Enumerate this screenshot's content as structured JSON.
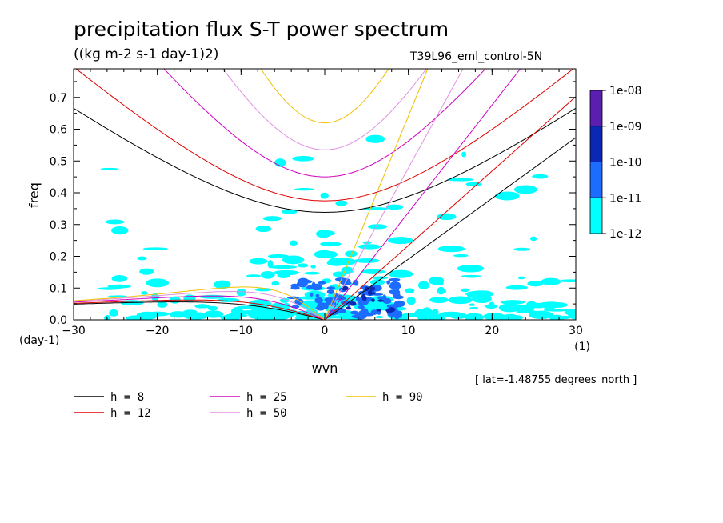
{
  "title": "precipitation flux S-T power spectrum",
  "units": "((kg m-2 s-1 day-1)2)",
  "dataset": "T39L96_eml_control-5N",
  "location_note": "[ lat=-1.48755 degrees_north ]",
  "chart_data": {
    "type": "heatmap",
    "xlabel": "wvn",
    "xunit": "(1)",
    "ylabel": "freq",
    "yunit": "(day-1)",
    "xlim": [
      -30,
      30
    ],
    "ylim": [
      0,
      0.79
    ],
    "xticks": [
      -30,
      -20,
      -10,
      0,
      10,
      20,
      30
    ],
    "yticks": [
      0.0,
      0.1,
      0.2,
      0.3,
      0.4,
      0.5,
      0.6,
      0.7
    ],
    "ytick_labels": [
      "0.0",
      "0.1",
      "0.2",
      "0.3",
      "0.4",
      "0.5",
      "0.6",
      "0.7"
    ],
    "colorbar": {
      "labels": [
        "1e-08",
        "1e-09",
        "1e-10",
        "1e-11",
        "1e-12"
      ],
      "colors": [
        "#5a1eb0",
        "#0a28b4",
        "#1c6cff",
        "#00ffff"
      ]
    },
    "dispersion_curves": [
      {
        "label": "h =  8",
        "h": 8,
        "color": "#000000"
      },
      {
        "label": "h = 12",
        "h": 12,
        "color": "#e00000"
      },
      {
        "label": "h = 25",
        "h": 25,
        "color": "#d000c0"
      },
      {
        "label": "h = 50",
        "h": 50,
        "color": "#e090e0"
      },
      {
        "label": "h = 90",
        "h": 90,
        "color": "#f0c000"
      }
    ]
  }
}
